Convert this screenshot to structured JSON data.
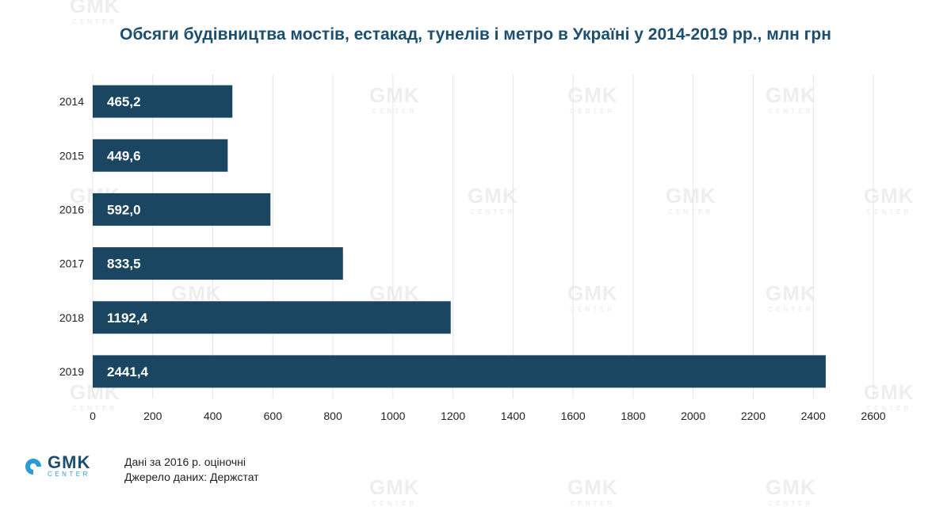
{
  "chart_data": {
    "type": "bar",
    "orientation": "horizontal",
    "title": "Обсяги будівництва мостів, естакад, тунелів і метро в Україні у 2014-2019 рр., млн грн",
    "categories": [
      "2014",
      "2015",
      "2016",
      "2017",
      "2018",
      "2019"
    ],
    "values": [
      465.2,
      449.6,
      592.0,
      833.5,
      1192.4,
      2441.4
    ],
    "value_labels": [
      "465,2",
      "449,6",
      "592,0",
      "833,5",
      "1192,4",
      "2441,4"
    ],
    "xlim": [
      0,
      2600
    ],
    "xticks": [
      0,
      200,
      400,
      600,
      800,
      1000,
      1200,
      1400,
      1600,
      1800,
      2000,
      2200,
      2400,
      2600
    ],
    "grid": true,
    "bar_color": "#1b4662",
    "label_color": "#ffffff"
  },
  "notes": {
    "line1": "Дані за 2016 р. оціночні",
    "line2": "Джерело даних: Держстат"
  },
  "logo": {
    "name": "GMK",
    "sub": "CENTER",
    "accent": "#2a9bd6"
  }
}
